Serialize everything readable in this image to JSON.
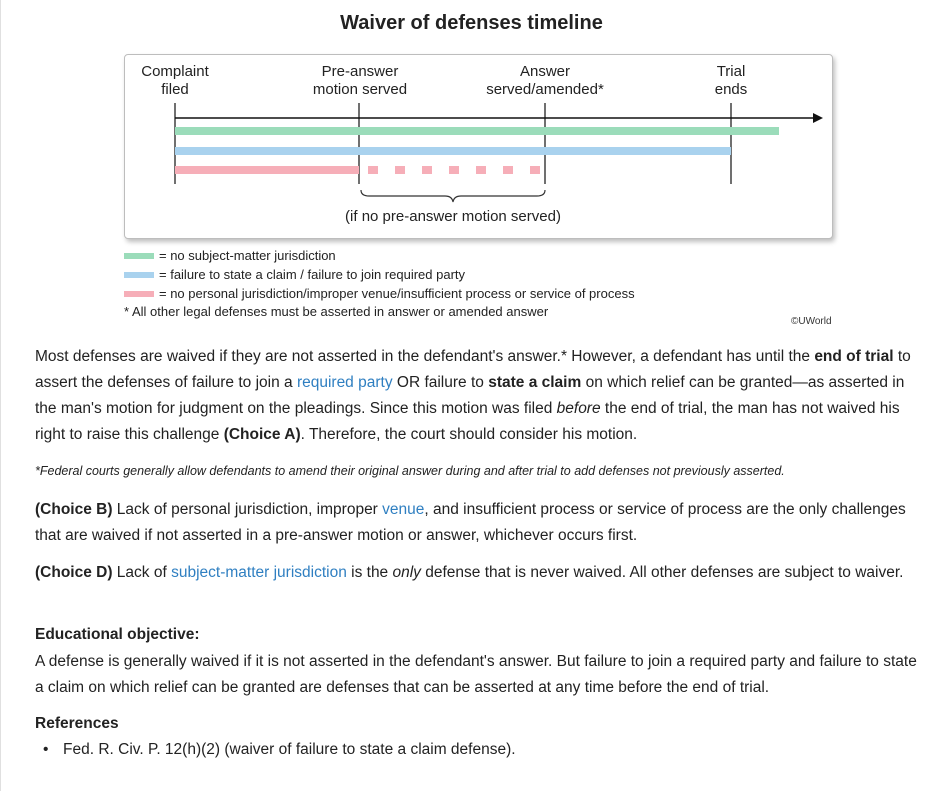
{
  "figure": {
    "title": "Waiver of defenses timeline",
    "milestones": [
      {
        "line1": "Complaint",
        "line2": "filed"
      },
      {
        "line1": "Pre-answer",
        "line2": "motion served"
      },
      {
        "line1": "Answer",
        "line2": "served/amended*"
      },
      {
        "line1": "Trial",
        "line2": "ends"
      }
    ],
    "brace_label": "(if no pre-answer motion served)",
    "legend": [
      {
        "label": "= no subject-matter jurisdiction",
        "color": "#9bdcba"
      },
      {
        "label": "= failure to state a claim / failure to join required party",
        "color": "#a9d2ee"
      },
      {
        "label": "= no personal jurisdiction/improper venue/insufficient process or service of process",
        "color": "#f6aeb8"
      }
    ],
    "note": "* All other legal defenses must be asserted in answer or amended answer",
    "copyright": "©UWorld"
  },
  "explanation": {
    "p1": {
      "a": "Most defenses are waived if they are not asserted in the defendant's answer.* However, a defendant has until the ",
      "b": "end of trial",
      "c": " to assert the defenses of failure to join a ",
      "d": "required party",
      "e": " OR failure to ",
      "f": "state a claim",
      "g": " on which relief can be granted—as asserted in the man's motion for judgment on the pleadings. Since this motion was filed ",
      "h": "before",
      "i": " the end of trial, the man has not waived his right to raise this challenge ",
      "j": "(Choice A)",
      "k": ". Therefore, the court should consider his motion."
    },
    "footnote": "*Federal courts generally allow defendants to amend their original answer during and after trial to add defenses not previously asserted.",
    "choice_b": {
      "label": "(Choice B)",
      "a": " Lack of personal jurisdiction, improper ",
      "link": "venue",
      "b": ", and insufficient process or service of process are the only challenges that are waived if not asserted in a pre-answer motion or answer, whichever occurs first."
    },
    "choice_d": {
      "label": "(Choice D)",
      "a": " Lack of ",
      "link": "subject-matter jurisdiction",
      "b": " is the ",
      "c": "only",
      "d": " defense that is never waived. All other defenses are subject to waiver."
    },
    "objective_heading": "Educational objective:",
    "objective_text": "A defense is generally waived if it is not asserted in the defendant's answer. But failure to join a required party and failure to state a claim on which relief can be granted are defenses that can be asserted at any time before the end of trial.",
    "references_heading": "References",
    "references": [
      "Fed. R. Civ. P. 12(h)(2) (waiver of failure to state a claim defense)."
    ]
  }
}
